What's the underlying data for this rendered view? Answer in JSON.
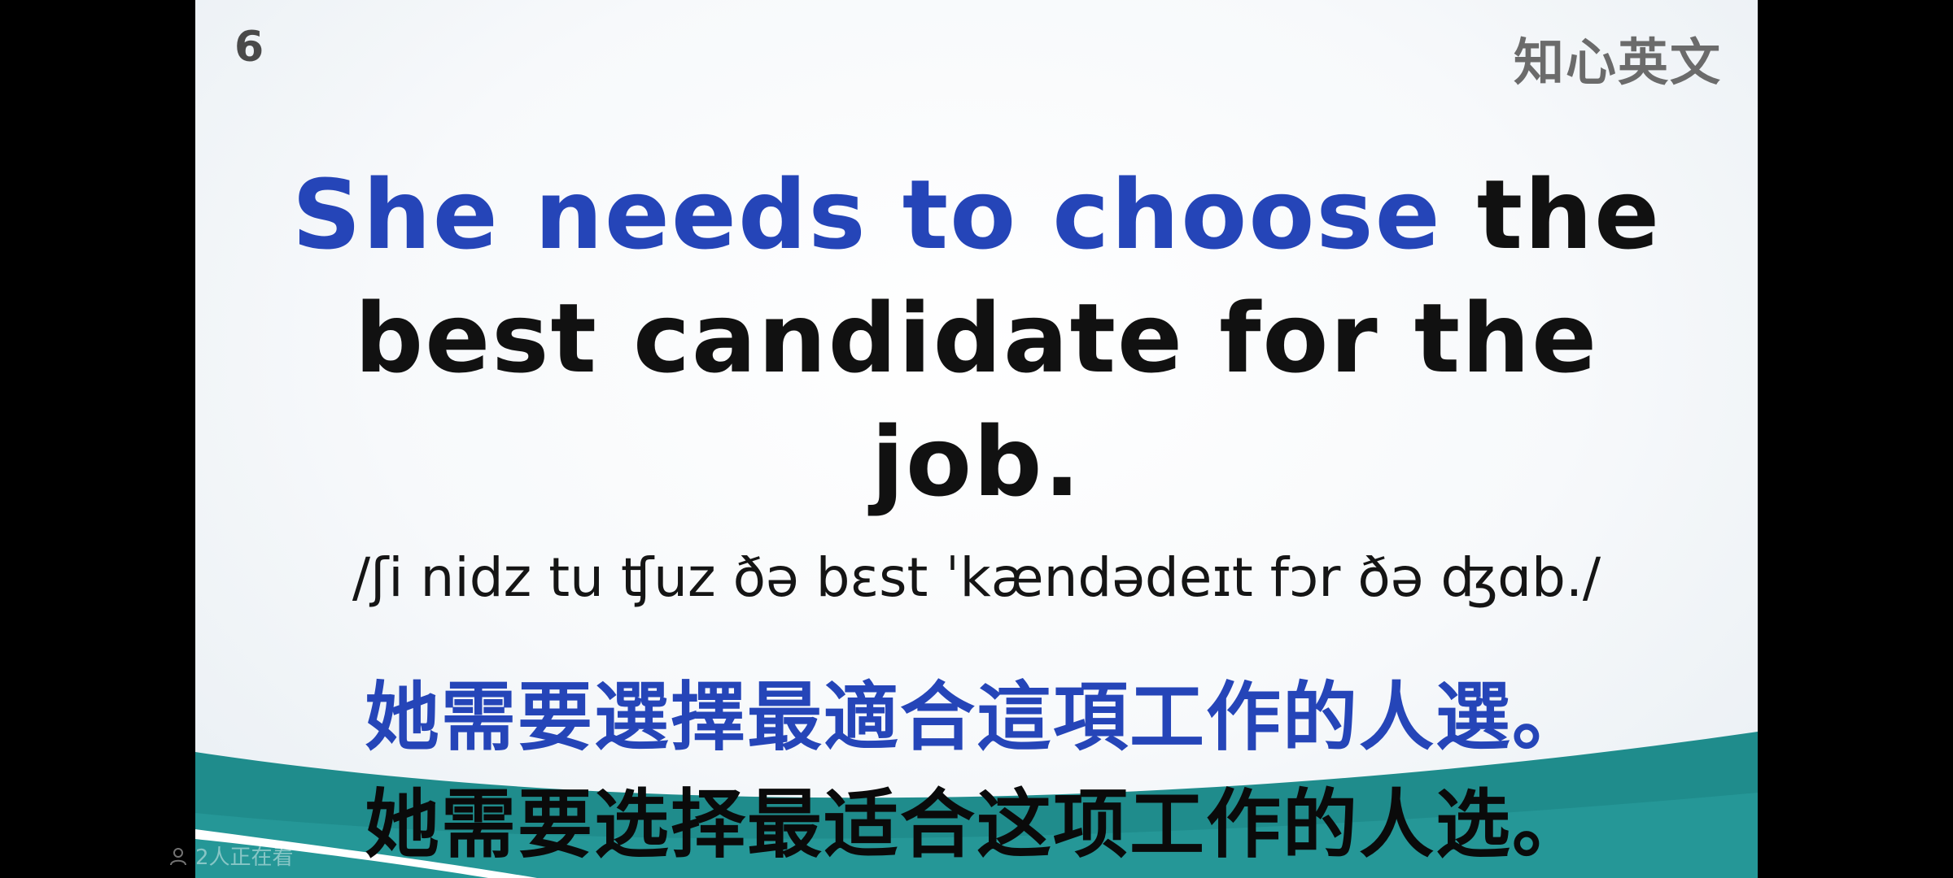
{
  "slide": {
    "number": "6",
    "brand": "知心英文",
    "sentence_highlight": "She needs to choose",
    "sentence_rest_line1": " the",
    "sentence_line2": "best candidate for the",
    "sentence_line3": "job.",
    "ipa": "/ʃi nidz tu ʧuz ðə bɛst ˈkændədeɪt fɔr ðə ʤɑb./",
    "translation_traditional": "她需要選擇最適合這項工作的人選。",
    "translation_simplified": "她需要选择最适合这项工作的人选。"
  },
  "overlay": {
    "viewers_text": "2人正在看",
    "viewers_icon": "people-icon"
  },
  "colors": {
    "highlight": "#2545b8",
    "wave_teal": "#1f8c8c",
    "background": "#000000"
  }
}
